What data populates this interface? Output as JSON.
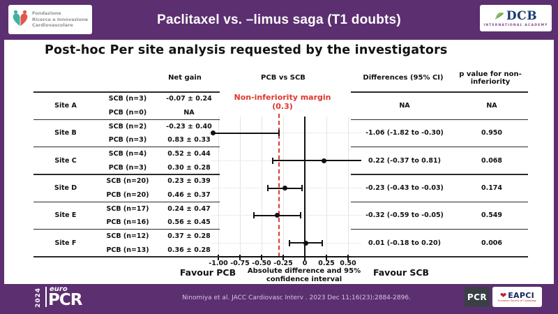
{
  "header": {
    "title": "Paclitaxel vs. –limus saga (T1 doubts)",
    "left_logo": {
      "line1": "Fondazione",
      "line2": "Ricerca e Innovazione",
      "line3": "Cardiovascolare"
    },
    "right_logo": {
      "name": "DCB",
      "subtitle": "INTERNATIONAL ACADEMY"
    }
  },
  "slide_title": "Post-hoc Per site analysis requested by the investigators",
  "table": {
    "col_headers": {
      "net_gain": "Net gain",
      "plot": "PCB vs SCB",
      "differences": "Differences (95% CI)",
      "p_value": "p value for non-inferiority"
    },
    "rows": [
      {
        "site": "Site A",
        "scb": "SCB (n=3)",
        "scb_val": "-0.07 ± 0.24",
        "pcb": "PCB (n=0)",
        "pcb_val": "NA",
        "diff": "NA",
        "p": "NA"
      },
      {
        "site": "Site B",
        "scb": "SCB (n=2)",
        "scb_val": "-0.23 ± 0.40",
        "pcb": "PCB (n=3)",
        "pcb_val": "0.83 ± 0.33",
        "diff": "-1.06 (-1.82 to -0.30)",
        "p": "0.950"
      },
      {
        "site": "Site C",
        "scb": "SCB (n=4)",
        "scb_val": "0.52 ± 0.44",
        "pcb": "PCB (n=3)",
        "pcb_val": "0.30 ± 0.28",
        "diff": "0.22 (-0.37 to 0.81)",
        "p": "0.068"
      },
      {
        "site": "Site D",
        "scb": "SCB (n=20)",
        "scb_val": "0.23 ± 0.39",
        "pcb": "PCB (n=20)",
        "pcb_val": "0.46 ± 0.37",
        "diff": "-0.23 (-0.43 to -0.03)",
        "p": "0.174"
      },
      {
        "site": "Site E",
        "scb": "SCB (n=17)",
        "scb_val": "0.24 ± 0.47",
        "pcb": "PCB (n=16)",
        "pcb_val": "0.56 ± 0.45",
        "diff": "-0.32 (-0.59 to -0.05)",
        "p": "0.549"
      },
      {
        "site": "Site F",
        "scb": "SCB (n=12)",
        "scb_val": "0.37 ± 0.28",
        "pcb": "PCB (n=13)",
        "pcb_val": "0.36 ± 0.28",
        "diff": "0.01 (-0.18 to 0.20)",
        "p": "0.006"
      }
    ]
  },
  "chart_data": {
    "type": "forest",
    "title": "PCB vs SCB",
    "xlabel": "Absolute difference and 95% confidence interval",
    "xlabel_line1": "Absolute difference and 95%",
    "xlabel_line2": "confidence interval",
    "x_ticks": [
      -1.0,
      -0.75,
      -0.5,
      -0.25,
      0,
      0.25,
      0.5
    ],
    "x_tick_labels": [
      "-1.00",
      "-0.75",
      "-0.50",
      "-0.25",
      "0",
      "0.25",
      "0.50"
    ],
    "xlim": [
      -1.08,
      0.65
    ],
    "grid": true,
    "margin_line": {
      "value": -0.3,
      "label": "Non-inferiority margin",
      "label_value": "(0.3)",
      "color": "#df372b"
    },
    "zero_line": 0,
    "points": [
      {
        "site": "Site B",
        "est": -1.06,
        "lo": -1.82,
        "hi": -0.3
      },
      {
        "site": "Site C",
        "est": 0.22,
        "lo": -0.37,
        "hi": 0.81
      },
      {
        "site": "Site D",
        "est": -0.23,
        "lo": -0.43,
        "hi": -0.03
      },
      {
        "site": "Site E",
        "est": -0.32,
        "lo": -0.59,
        "hi": -0.05
      },
      {
        "site": "Site F",
        "est": 0.01,
        "lo": -0.18,
        "hi": 0.2
      }
    ],
    "favour_left": "Favour PCB",
    "favour_right": "Favour SCB"
  },
  "footer": {
    "citation": "Ninomiya et al. JACC Cardiovasc Interv . 2023 Dec 11;16(23):2884-2896.",
    "europcr": {
      "year": "2024",
      "euro": "euro",
      "pcr": "PCR"
    },
    "pcr_logo": "PCR",
    "eapci": {
      "name": "EAPCI",
      "heart": "❤",
      "tagline": "European Society of Cardiology"
    }
  },
  "colors": {
    "purple": "#5c2f70",
    "red": "#df372b",
    "black": "#111111",
    "grid": "#e3e3e3",
    "citation_text": "#d5c6e0"
  }
}
